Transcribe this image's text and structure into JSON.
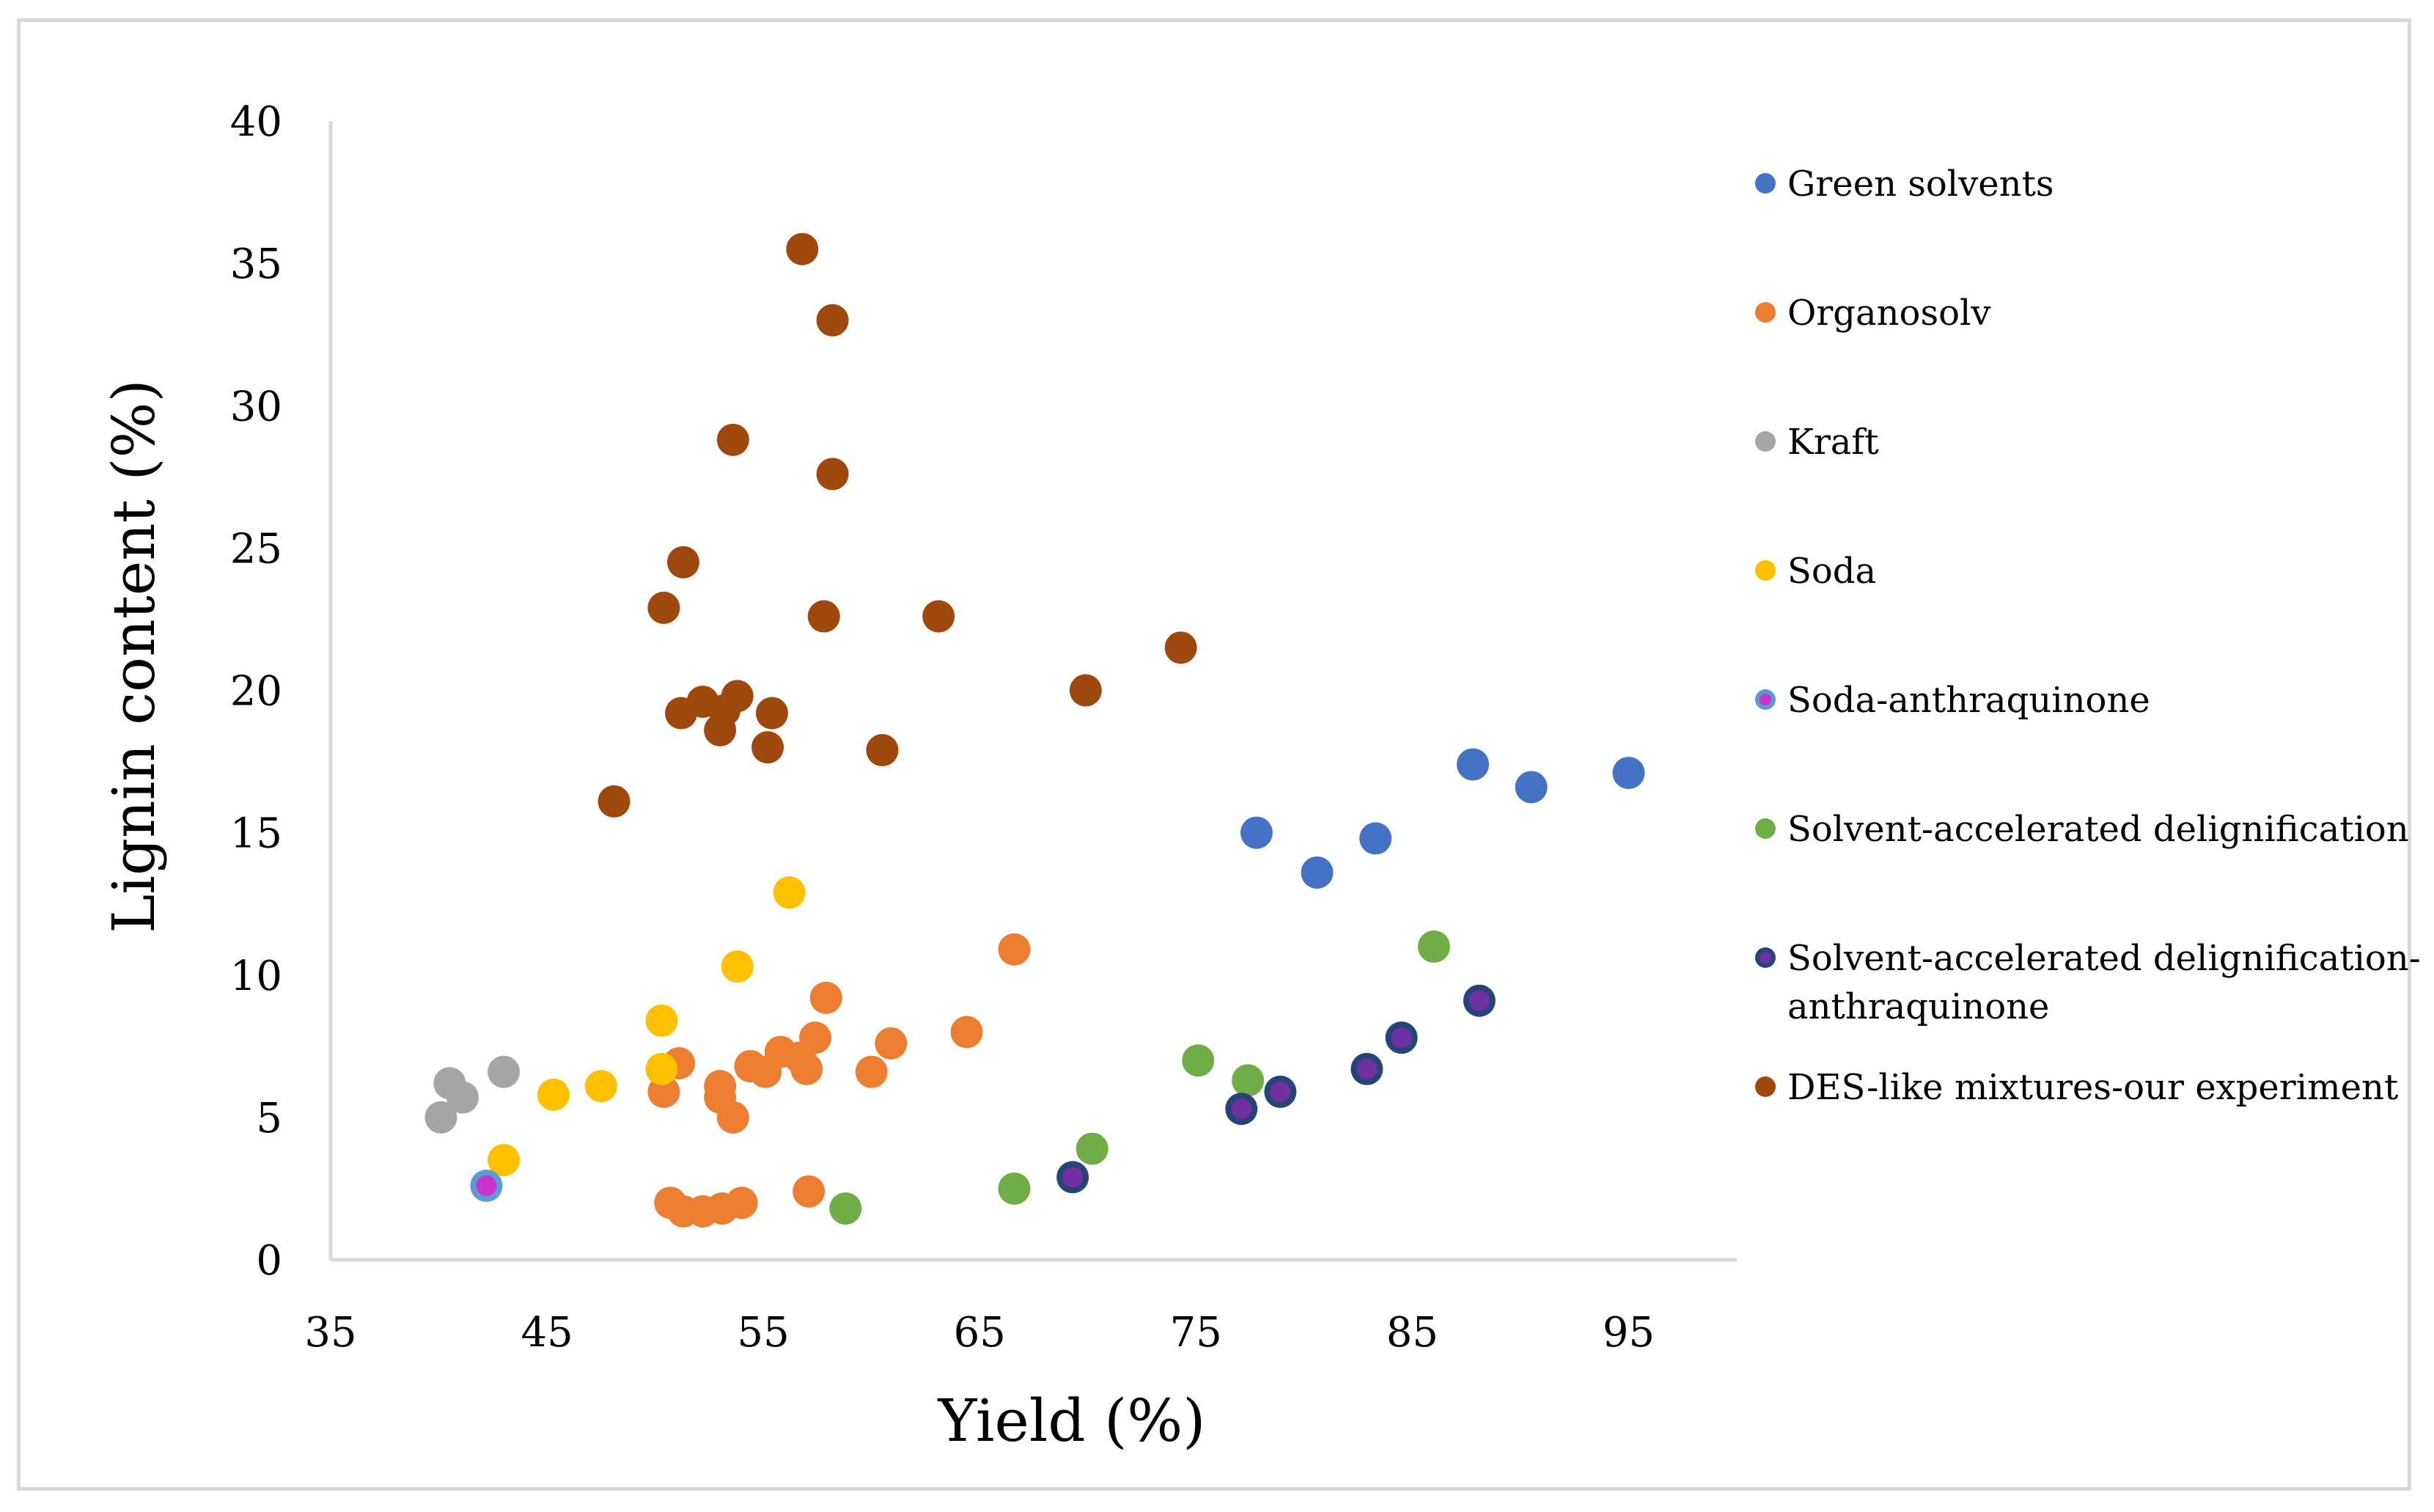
{
  "chart_data": {
    "type": "scatter",
    "title": "",
    "xlabel": "Yield (%)",
    "ylabel": "Lignin content (%)",
    "xlim": [
      35,
      100
    ],
    "ylim": [
      0,
      40
    ],
    "xticks": [
      35,
      45,
      55,
      65,
      75,
      85,
      95
    ],
    "yticks": [
      0,
      5,
      10,
      15,
      20,
      25,
      30,
      35,
      40
    ],
    "grid": false,
    "legend_position": "right",
    "series": [
      {
        "name": "Green solvents",
        "color": "#4472c4",
        "points": [
          [
            77.8,
            15.0
          ],
          [
            80.6,
            13.6
          ],
          [
            83.3,
            14.8
          ],
          [
            87.8,
            17.4
          ],
          [
            90.5,
            16.6
          ],
          [
            95.0,
            17.1
          ]
        ]
      },
      {
        "name": "Organosolv",
        "color": "#ed7d31",
        "points": [
          [
            50.4,
            5.9
          ],
          [
            51.1,
            6.9
          ],
          [
            53.0,
            6.1
          ],
          [
            53.0,
            5.7
          ],
          [
            53.6,
            5.0
          ],
          [
            54.4,
            6.8
          ],
          [
            55.1,
            6.6
          ],
          [
            55.8,
            7.3
          ],
          [
            56.7,
            7.1
          ],
          [
            57.0,
            6.7
          ],
          [
            57.4,
            7.8
          ],
          [
            57.9,
            9.2
          ],
          [
            60.0,
            6.6
          ],
          [
            60.9,
            7.6
          ],
          [
            64.4,
            8.0
          ],
          [
            66.6,
            10.9
          ],
          [
            50.7,
            2.0
          ],
          [
            51.3,
            1.7
          ],
          [
            52.2,
            1.7
          ],
          [
            53.1,
            1.8
          ],
          [
            54.0,
            2.0
          ],
          [
            57.1,
            2.4
          ]
        ]
      },
      {
        "name": "Kraft",
        "color": "#a5a5a5",
        "points": [
          [
            40.1,
            5.0
          ],
          [
            40.5,
            6.2
          ],
          [
            41.1,
            5.7
          ],
          [
            43.0,
            6.6
          ]
        ]
      },
      {
        "name": "Soda",
        "color": "#ffc000",
        "points": [
          [
            43.0,
            3.5
          ],
          [
            45.3,
            5.8
          ],
          [
            47.5,
            6.1
          ],
          [
            50.3,
            8.4
          ],
          [
            50.3,
            6.7
          ],
          [
            53.8,
            10.3
          ],
          [
            56.2,
            12.9
          ]
        ]
      },
      {
        "name": "Soda-anthraquinone",
        "color": "#5b9bd5",
        "inner_color": "#cc33cc",
        "points": [
          [
            42.2,
            2.6
          ]
        ]
      },
      {
        "name": "Solvent-accelerated delignification",
        "color": "#70ad47",
        "points": [
          [
            58.8,
            1.8
          ],
          [
            66.6,
            2.5
          ],
          [
            70.2,
            3.9
          ],
          [
            75.1,
            7.0
          ],
          [
            77.4,
            6.3
          ],
          [
            86.0,
            11.0
          ]
        ]
      },
      {
        "name": "Solvent-accelerated delignification-anthraquinone",
        "legend_lines": [
          "Solvent-accelerated delignification-",
          "anthraquinone"
        ],
        "color": "#264478",
        "inner_color": "#7030a0",
        "points": [
          [
            69.3,
            2.9
          ],
          [
            77.1,
            5.3
          ],
          [
            78.9,
            5.9
          ],
          [
            82.9,
            6.7
          ],
          [
            84.5,
            7.8
          ],
          [
            88.1,
            9.1
          ]
        ]
      },
      {
        "name": "DES-like mixtures-our experiment",
        "color": "#9e480e",
        "points": [
          [
            56.8,
            35.5
          ],
          [
            58.2,
            33.0
          ],
          [
            53.6,
            28.8
          ],
          [
            58.2,
            27.6
          ],
          [
            51.3,
            24.5
          ],
          [
            50.4,
            22.9
          ],
          [
            57.8,
            22.6
          ],
          [
            63.1,
            22.6
          ],
          [
            74.3,
            21.5
          ],
          [
            69.9,
            20.0
          ],
          [
            52.2,
            19.6
          ],
          [
            53.8,
            19.8
          ],
          [
            51.2,
            19.2
          ],
          [
            53.2,
            19.3
          ],
          [
            55.4,
            19.2
          ],
          [
            53.0,
            18.6
          ],
          [
            55.2,
            18.0
          ],
          [
            60.5,
            17.9
          ],
          [
            48.1,
            16.1
          ]
        ]
      }
    ]
  }
}
